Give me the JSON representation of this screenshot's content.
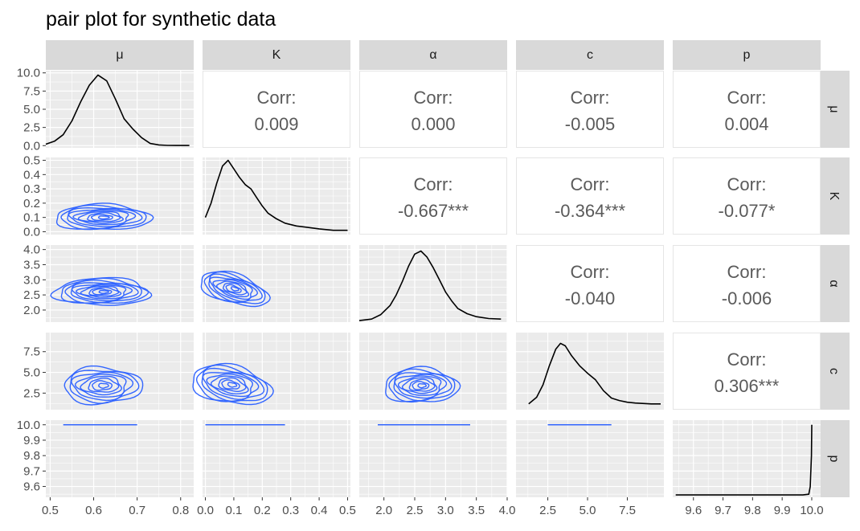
{
  "title": "pair plot for synthetic data",
  "chart_data": {
    "type": "pair-plot",
    "title": "pair plot for synthetic data",
    "variables": [
      "μ",
      "K",
      "α",
      "c",
      "p"
    ],
    "row_strips": [
      "μ",
      "K",
      "α",
      "c",
      "p"
    ],
    "corr_label": "Corr:",
    "correlations": [
      {
        "row": 0,
        "col": 1,
        "value": "0.009"
      },
      {
        "row": 0,
        "col": 2,
        "value": "0.000"
      },
      {
        "row": 0,
        "col": 3,
        "value": "-0.005"
      },
      {
        "row": 0,
        "col": 4,
        "value": "0.004"
      },
      {
        "row": 1,
        "col": 2,
        "value": "-0.667***"
      },
      {
        "row": 1,
        "col": 3,
        "value": "-0.364***"
      },
      {
        "row": 1,
        "col": 4,
        "value": "-0.077*"
      },
      {
        "row": 2,
        "col": 3,
        "value": "-0.040"
      },
      {
        "row": 2,
        "col": 4,
        "value": "-0.006"
      },
      {
        "row": 3,
        "col": 4,
        "value": "0.306***"
      }
    ],
    "x_ticks": [
      [
        "0.5",
        "0.6",
        "0.7",
        "0.8"
      ],
      [
        "0.0",
        "0.1",
        "0.2",
        "0.3",
        "0.4",
        "0.5"
      ],
      [
        "2.0",
        "2.5",
        "3.0",
        "3.5",
        "4.0"
      ],
      [
        "2.5",
        "5.0",
        "7.5"
      ],
      [
        "9.6",
        "9.7",
        "9.8",
        "9.9",
        "10.0"
      ]
    ],
    "x_tick_values": [
      [
        0.5,
        0.6,
        0.7,
        0.8
      ],
      [
        0.0,
        0.1,
        0.2,
        0.3,
        0.4,
        0.5
      ],
      [
        2.0,
        2.5,
        3.0,
        3.5,
        4.0
      ],
      [
        2.5,
        5.0,
        7.5
      ],
      [
        9.6,
        9.7,
        9.8,
        9.9,
        10.0
      ]
    ],
    "x_ranges": [
      [
        0.49,
        0.83
      ],
      [
        -0.01,
        0.51
      ],
      [
        1.6,
        4.0
      ],
      [
        0.5,
        9.8
      ],
      [
        9.53,
        10.03
      ]
    ],
    "y_ticks": [
      [
        "0.0",
        "2.5",
        "5.0",
        "7.5",
        "10.0"
      ],
      [
        "0.0",
        "0.1",
        "0.2",
        "0.3",
        "0.4",
        "0.5"
      ],
      [
        "2.0",
        "2.5",
        "3.0",
        "3.5",
        "4.0"
      ],
      [
        "2.5",
        "5.0",
        "7.5"
      ],
      [
        "9.6",
        "9.7",
        "9.8",
        "9.9",
        "10.0"
      ]
    ],
    "y_tick_values": [
      [
        0.0,
        2.5,
        5.0,
        7.5,
        10.0
      ],
      [
        0.0,
        0.1,
        0.2,
        0.3,
        0.4,
        0.5
      ],
      [
        2.0,
        2.5,
        3.0,
        3.5,
        4.0
      ],
      [
        2.5,
        5.0,
        7.5
      ],
      [
        9.6,
        9.7,
        9.8,
        9.9,
        10.0
      ]
    ],
    "y_ranges": [
      [
        -0.3,
        10.3
      ],
      [
        -0.02,
        0.52
      ],
      [
        1.6,
        4.15
      ],
      [
        0.5,
        9.8
      ],
      [
        9.53,
        10.03
      ]
    ],
    "density_curves": [
      {
        "variable": "μ",
        "x": [
          0.49,
          0.51,
          0.53,
          0.55,
          0.57,
          0.59,
          0.61,
          0.63,
          0.65,
          0.67,
          0.69,
          0.71,
          0.73,
          0.75,
          0.77,
          0.79,
          0.82
        ],
        "y": [
          0.2,
          0.6,
          1.5,
          3.4,
          6.0,
          8.3,
          9.7,
          8.9,
          6.4,
          3.7,
          2.3,
          1.1,
          0.3,
          0.1,
          0.03,
          0.02,
          0.02
        ]
      },
      {
        "variable": "K",
        "x": [
          0.0,
          0.02,
          0.04,
          0.06,
          0.08,
          0.1,
          0.12,
          0.14,
          0.16,
          0.18,
          0.2,
          0.22,
          0.25,
          0.28,
          0.32,
          0.36,
          0.4,
          0.45,
          0.5
        ],
        "y": [
          0.1,
          0.2,
          0.34,
          0.46,
          0.5,
          0.44,
          0.38,
          0.33,
          0.3,
          0.24,
          0.18,
          0.13,
          0.09,
          0.06,
          0.04,
          0.03,
          0.02,
          0.01,
          0.01
        ]
      },
      {
        "variable": "α",
        "x": [
          1.6,
          1.8,
          1.95,
          2.1,
          2.2,
          2.3,
          2.4,
          2.5,
          2.6,
          2.7,
          2.8,
          2.9,
          3.0,
          3.1,
          3.2,
          3.35,
          3.5,
          3.7,
          3.9
        ],
        "y": [
          1.65,
          1.7,
          1.85,
          2.15,
          2.5,
          2.95,
          3.45,
          3.85,
          3.95,
          3.75,
          3.4,
          3.0,
          2.6,
          2.3,
          2.05,
          1.88,
          1.78,
          1.72,
          1.7
        ]
      },
      {
        "variable": "c",
        "x": [
          1.3,
          1.8,
          2.2,
          2.6,
          3.0,
          3.3,
          3.6,
          4.0,
          4.5,
          5.0,
          5.5,
          6.0,
          6.5,
          7.0,
          7.5,
          8.0,
          9.0,
          9.6
        ],
        "y": [
          1.2,
          2.0,
          3.5,
          5.8,
          7.8,
          8.5,
          8.2,
          7.0,
          5.8,
          4.9,
          4.1,
          2.8,
          1.9,
          1.6,
          1.4,
          1.3,
          1.2,
          1.2
        ]
      },
      {
        "variable": "p",
        "x": [
          9.54,
          9.7,
          9.8,
          9.9,
          9.97,
          9.99,
          9.995,
          9.999,
          10.0
        ],
        "y": [
          9.545,
          9.545,
          9.545,
          9.545,
          9.545,
          9.55,
          9.6,
          9.8,
          10.0
        ]
      }
    ],
    "scatter_contours": [
      {
        "row": 1,
        "col": 0,
        "center": [
          0.62,
          0.1
        ],
        "radius": [
          0.11,
          0.09
        ],
        "levels": 9
      },
      {
        "row": 2,
        "col": 0,
        "center": [
          0.62,
          2.6
        ],
        "radius": [
          0.11,
          0.45
        ],
        "levels": 10
      },
      {
        "row": 2,
        "col": 1,
        "center": [
          0.1,
          2.7
        ],
        "radius": [
          0.12,
          0.5
        ],
        "levels": 9,
        "tilt": -0.55
      },
      {
        "row": 3,
        "col": 0,
        "center": [
          0.62,
          3.4
        ],
        "radius": [
          0.09,
          2.2
        ],
        "levels": 8
      },
      {
        "row": 3,
        "col": 1,
        "center": [
          0.09,
          3.5
        ],
        "radius": [
          0.14,
          2.3
        ],
        "levels": 9,
        "tilt": -0.3
      },
      {
        "row": 3,
        "col": 2,
        "center": [
          2.6,
          3.4
        ],
        "radius": [
          0.6,
          2.1
        ],
        "levels": 9
      }
    ],
    "p_row_lines": [
      {
        "col": 0,
        "x": [
          0.53,
          0.7
        ],
        "y": 10.0
      },
      {
        "col": 1,
        "x": [
          0.0,
          0.28
        ],
        "y": 10.0
      },
      {
        "col": 2,
        "x": [
          1.9,
          3.4
        ],
        "y": 10.0
      },
      {
        "col": 3,
        "x": [
          2.5,
          6.5
        ],
        "y": 10.0
      }
    ],
    "colors": {
      "panel": "#ebebeb",
      "grid": "#ffffff",
      "strip": "#d9d9d9",
      "contour": "#3366ff",
      "density": "#000000",
      "corr_text": "#5a5a5a"
    }
  }
}
